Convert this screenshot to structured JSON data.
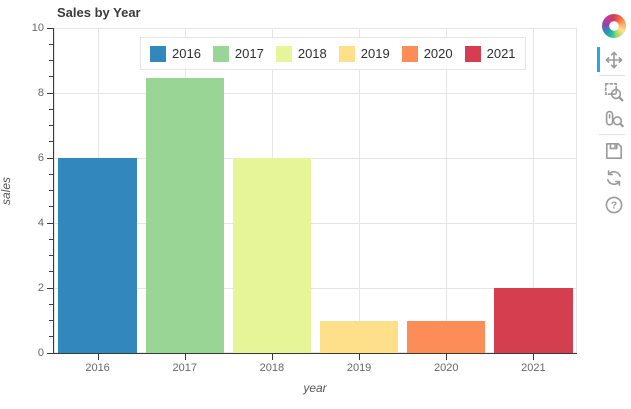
{
  "title": "Sales by Year",
  "chart_data": {
    "type": "bar",
    "title": "Sales by Year",
    "categories": [
      "2016",
      "2017",
      "2018",
      "2019",
      "2020",
      "2021"
    ],
    "values": [
      6,
      8.45,
      6,
      1,
      1,
      2
    ],
    "bar_colors": [
      "#3288bd",
      "#99d594",
      "#e6f598",
      "#fee08b",
      "#fc8d59",
      "#d53e4f"
    ],
    "xlabel": "year",
    "ylabel": "sales",
    "ylim": [
      0,
      10
    ],
    "yticks": [
      0,
      2,
      4,
      6,
      8,
      10
    ],
    "ytick_labels": [
      "0",
      "2",
      "4",
      "6",
      "8",
      "10"
    ],
    "minor_tick_step": 0.5,
    "grid": true,
    "legend_position": "top-center",
    "legend_labels": [
      "2016",
      "2017",
      "2018",
      "2019",
      "2020",
      "2021"
    ]
  },
  "colors": {
    "grid": "#e5e5e5",
    "axis": "#3a3a3a",
    "tick_label": "#666666",
    "title": "#3b3b3b",
    "toolbar_icon": "#9a9a9a",
    "active_tool_accent": "#26aae1",
    "legend_border": "#e5e5e5"
  },
  "toolbar": {
    "logo": "bokeh-logo",
    "tools": [
      {
        "id": "pan",
        "label": "Pan",
        "active": true,
        "group": 0
      },
      {
        "id": "box-zoom",
        "label": "Box Zoom",
        "active": false,
        "group": 1
      },
      {
        "id": "wheel-zoom",
        "label": "Wheel Zoom",
        "active": false,
        "group": 1
      },
      {
        "id": "save",
        "label": "Save",
        "active": false,
        "group": 2
      },
      {
        "id": "reset",
        "label": "Reset",
        "active": false,
        "group": 2
      },
      {
        "id": "help",
        "label": "Help",
        "active": false,
        "group": 2
      }
    ]
  }
}
